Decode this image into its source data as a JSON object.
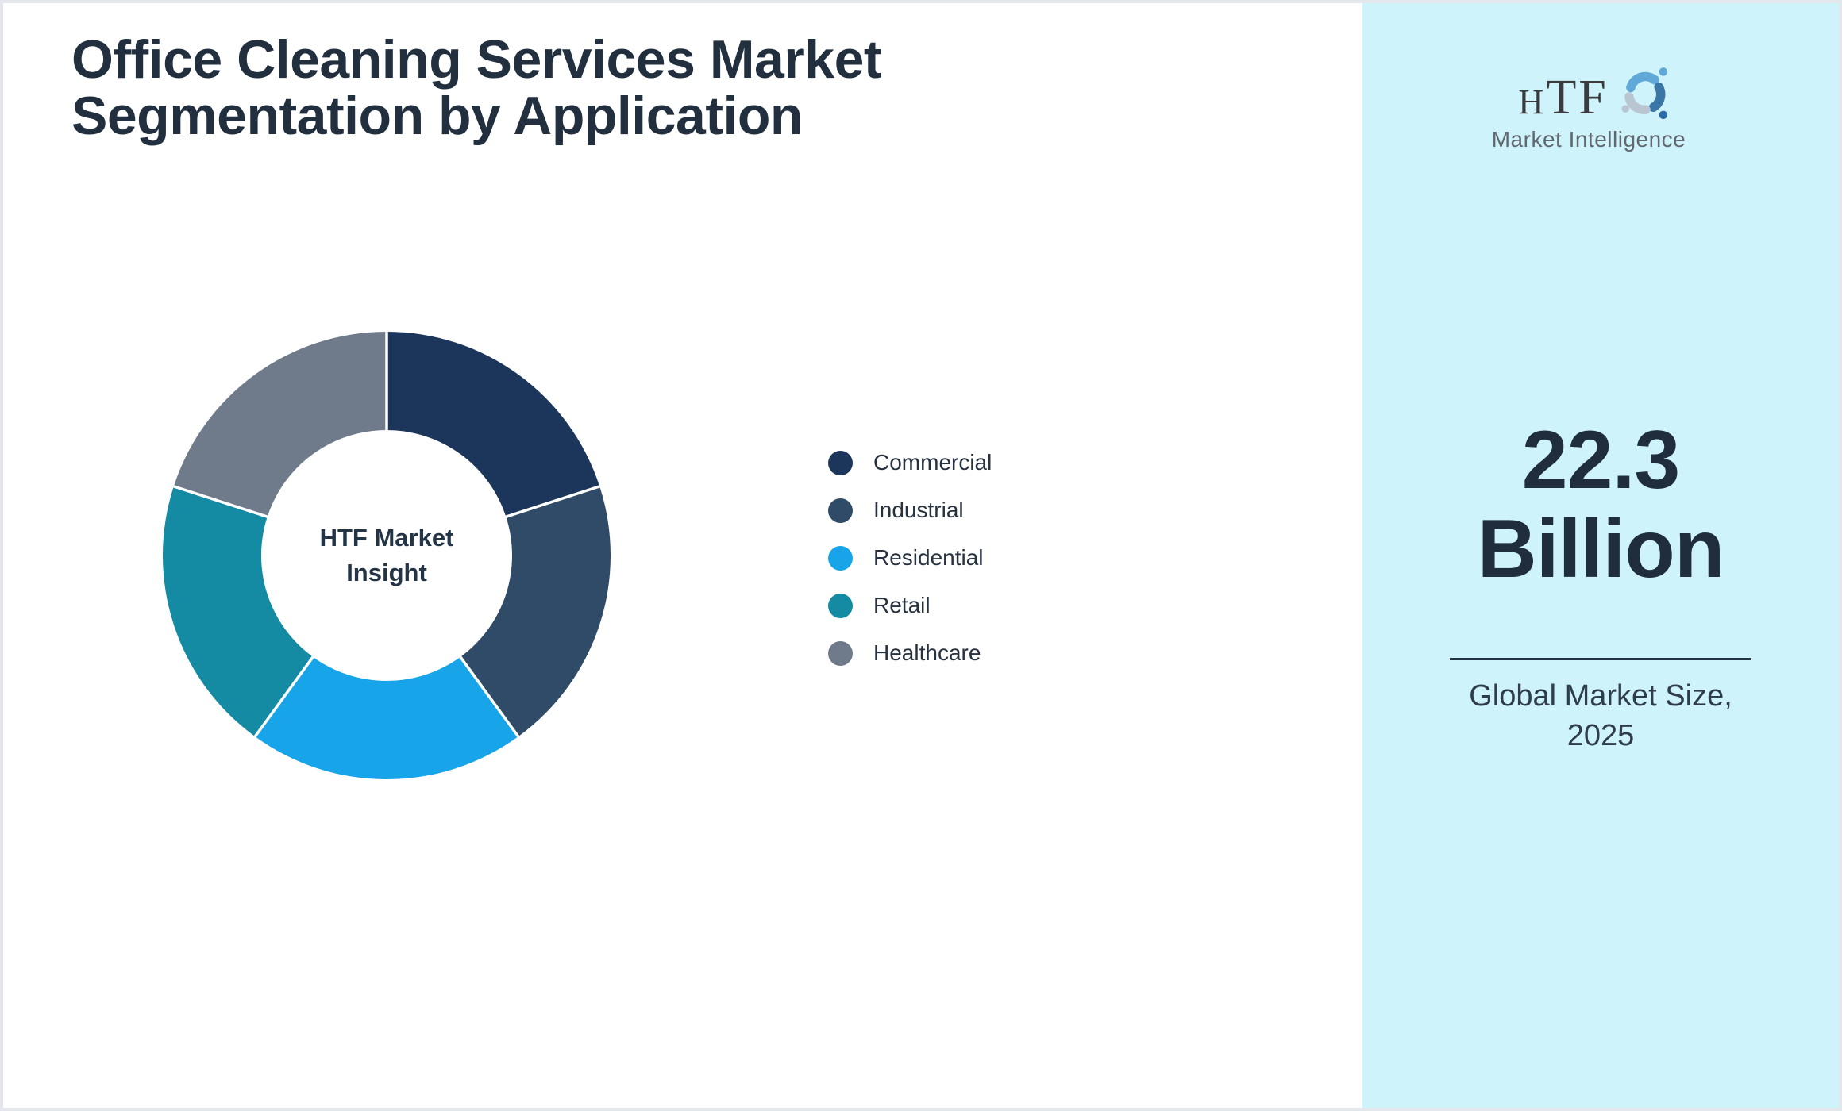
{
  "header": {
    "title_line1": "Office Cleaning Services Market",
    "title_line2": "Segmentation by Application"
  },
  "chart_data": {
    "type": "pie",
    "subtype": "donut",
    "title": "Office Cleaning Services Market Segmentation by Application",
    "categories": [
      "Commercial",
      "Industrial",
      "Residential",
      "Retail",
      "Healthcare"
    ],
    "values": [
      20,
      20,
      20,
      20,
      20
    ],
    "note": "five equal, unlabeled segments (20% each), drawn clockwise from 12 o'clock",
    "colors": [
      "#1c365b",
      "#2f4b68",
      "#18a4e8",
      "#148aa3",
      "#6f7a8a"
    ],
    "separator_color": "#ffffff",
    "start_angle_deg": 0,
    "direction": "clockwise",
    "inner_radius_ratio": 0.56,
    "legend_position": "right",
    "center_label_line1": "HTF Market",
    "center_label_line2": "Insight"
  },
  "sidebar": {
    "background_color": "#cff3fa",
    "logo_text": "HTF",
    "logo_subtitle": "Market Intelligence",
    "market_size_value": "22.3",
    "market_size_unit": "Billion",
    "caption_line1": "Global Market Size,",
    "caption_line2": "2025"
  }
}
